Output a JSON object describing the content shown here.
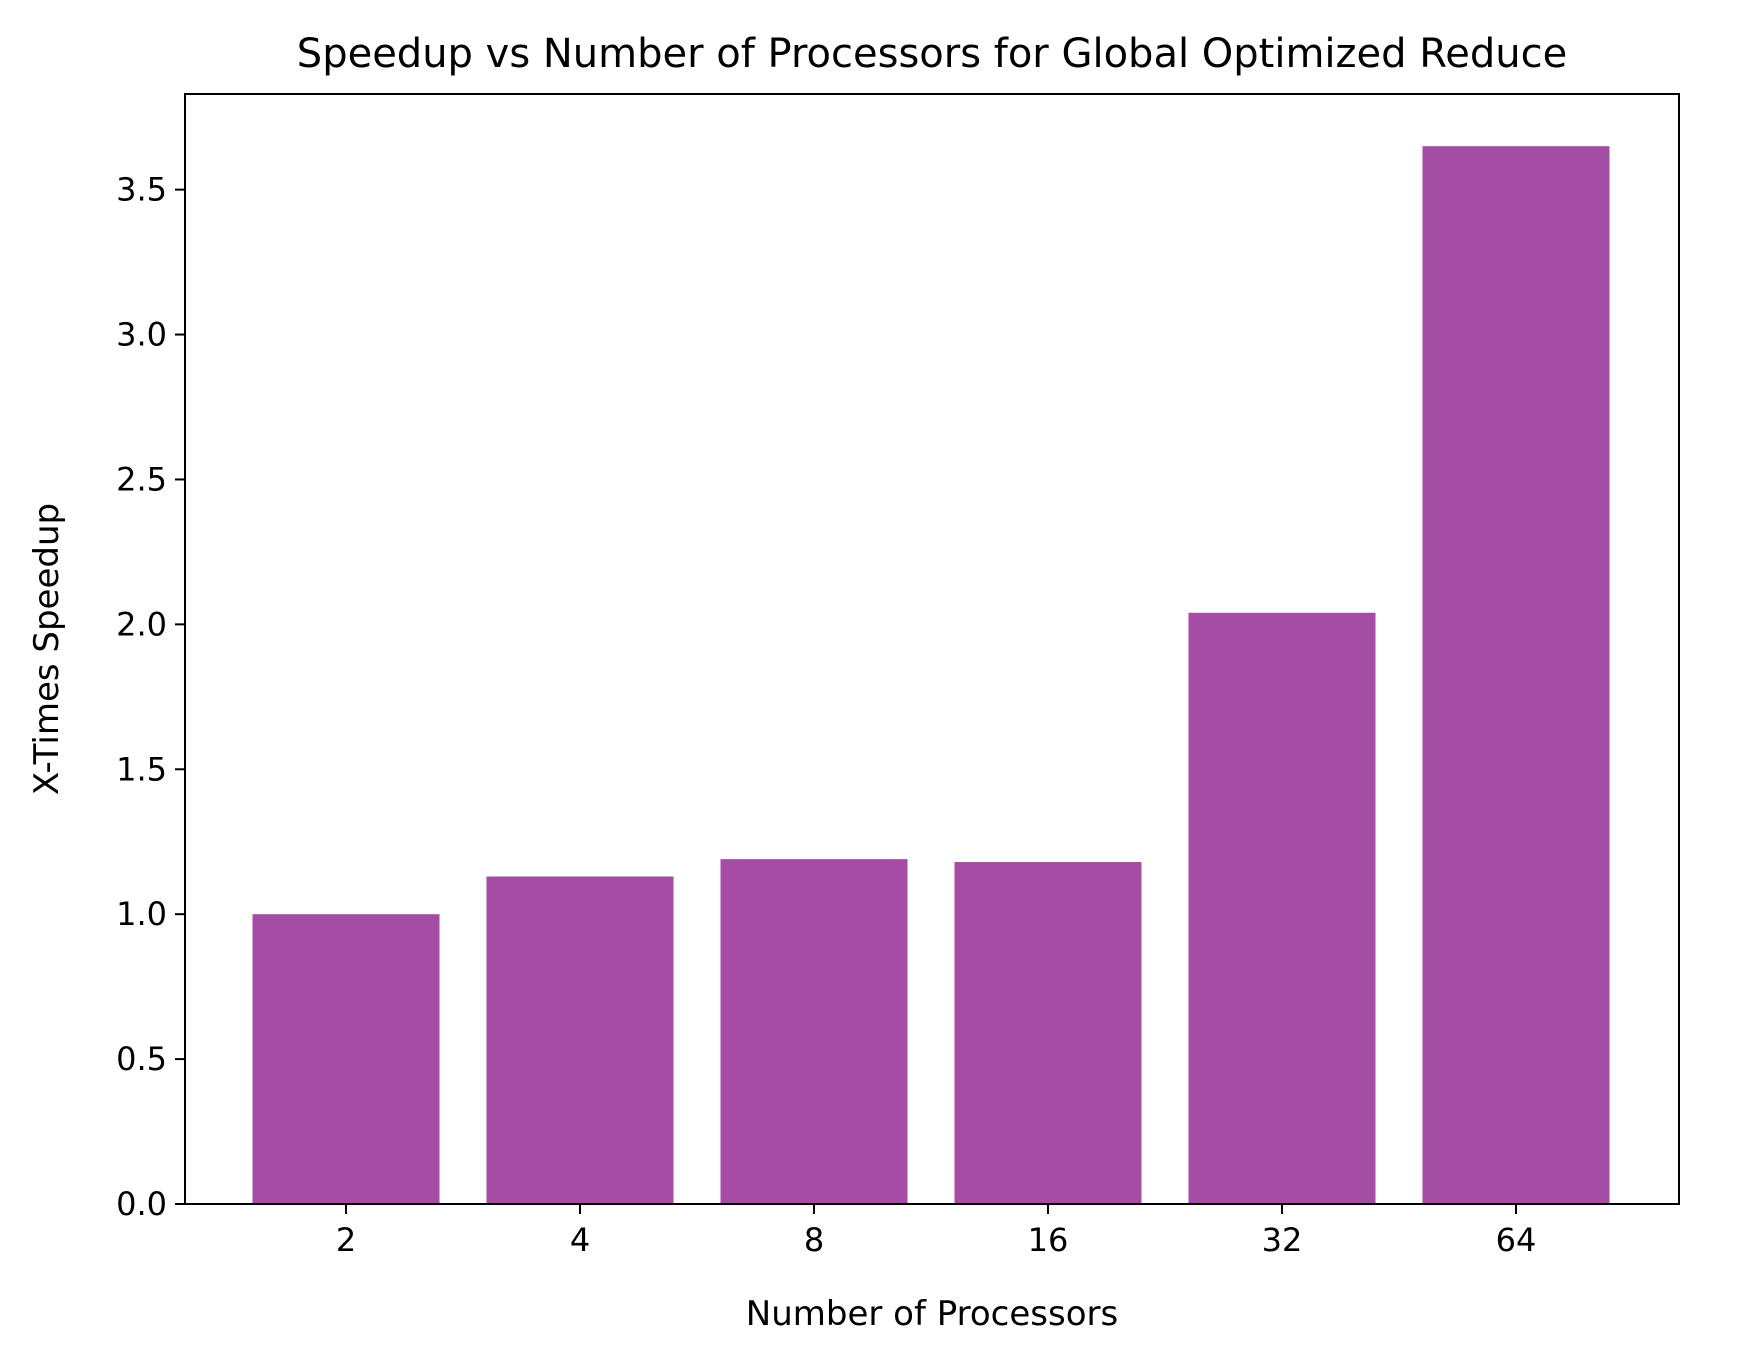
{
  "chart_data": {
    "type": "bar",
    "title": "Speedup vs Number of Processors for Global Optimized Reduce",
    "xlabel": "Number of Processors",
    "ylabel": "X-Times Speedup",
    "categories": [
      "2",
      "4",
      "8",
      "16",
      "32",
      "64"
    ],
    "values": [
      1.0,
      1.13,
      1.19,
      1.18,
      2.04,
      3.65
    ],
    "ylim": [
      0,
      3.83
    ],
    "yticks": [
      "0.0",
      "0.5",
      "1.0",
      "1.5",
      "2.0",
      "2.5",
      "3.0",
      "3.5"
    ],
    "grid": false,
    "legend": "none",
    "bar_color": "#a54da5"
  }
}
